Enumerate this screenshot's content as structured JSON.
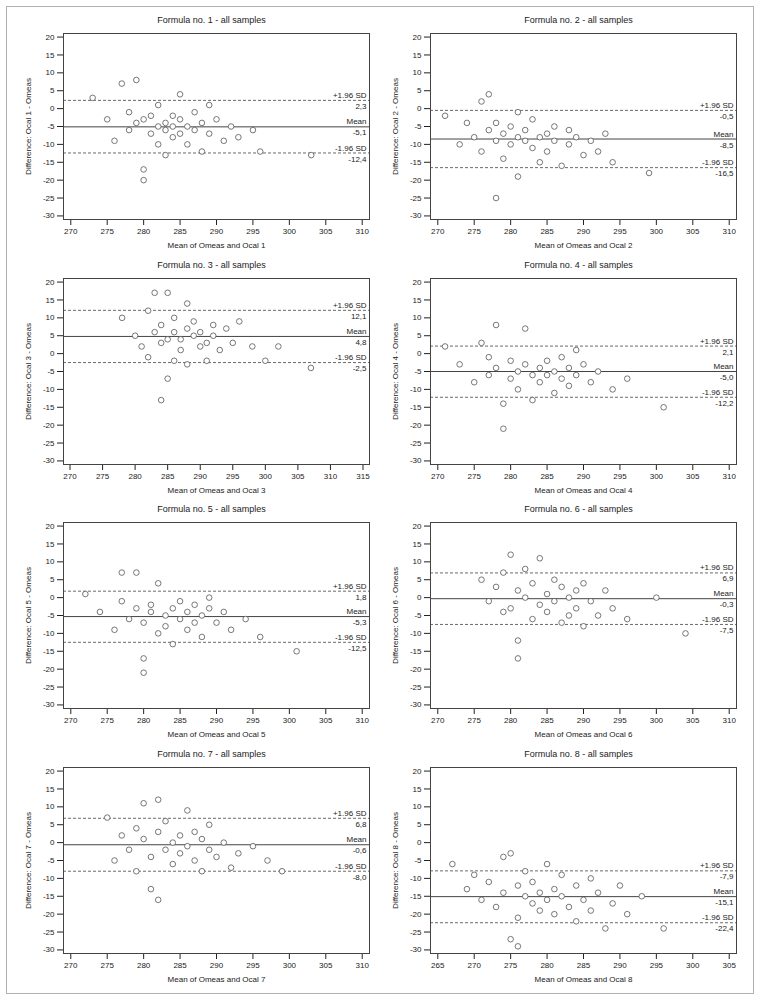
{
  "chart_data": [
    {
      "type": "scatter",
      "title": "Formula no. 1 - all samples",
      "x_label": "Mean of Omeas and Ocal 1",
      "y_label": "Difference: Ocal 1 - Omeas",
      "xlim": [
        269,
        311
      ],
      "xticks": [
        270,
        275,
        280,
        285,
        290,
        295,
        300,
        305,
        310
      ],
      "ylim": [
        -31,
        21
      ],
      "yticks": [
        -30,
        -25,
        -20,
        -15,
        -10,
        -5,
        0,
        5,
        10,
        15,
        20
      ],
      "marker": "circle",
      "color": "#555555",
      "x": [
        273,
        275,
        276,
        277,
        278,
        278,
        279,
        279,
        280,
        280,
        280,
        281,
        281,
        282,
        282,
        282,
        283,
        283,
        283,
        284,
        284,
        284,
        285,
        285,
        285,
        286,
        286,
        287,
        287,
        288,
        288,
        289,
        289,
        290,
        291,
        292,
        293,
        295,
        296,
        303
      ],
      "values": [
        3,
        -3,
        -9,
        7,
        -1,
        -6,
        8,
        -4,
        -17,
        -20,
        -3,
        -7,
        -2,
        -5,
        -10,
        1,
        -6,
        -4,
        -13,
        -5,
        -2,
        -8,
        -3,
        -7,
        4,
        -5,
        -10,
        -6,
        -1,
        -4,
        -12,
        -7,
        1,
        -3,
        -9,
        -5,
        -8,
        -6,
        -12,
        -13
      ],
      "lines": [
        {
          "name": "+1.96 SD",
          "value": 2.3,
          "label": "2,3",
          "line_style": "dashed"
        },
        {
          "name": "Mean",
          "value": -5.1,
          "label": "-5,1",
          "line_style": "solid"
        },
        {
          "name": "-1.96 SD",
          "value": -12.4,
          "label": "-12,4",
          "line_style": "dashed"
        }
      ]
    },
    {
      "type": "scatter",
      "title": "Formula no. 2 - all samples",
      "x_label": "Mean of Omeas and Ocal 2",
      "y_label": "Difference: Ocal 2 - Omeas",
      "xlim": [
        269,
        311
      ],
      "xticks": [
        270,
        275,
        280,
        285,
        290,
        295,
        300,
        305,
        310
      ],
      "ylim": [
        -31,
        21
      ],
      "yticks": [
        -30,
        -25,
        -20,
        -15,
        -10,
        -5,
        0,
        5,
        10,
        15,
        20
      ],
      "marker": "circle",
      "color": "#555555",
      "x": [
        271,
        273,
        274,
        275,
        276,
        276,
        277,
        277,
        278,
        278,
        278,
        279,
        279,
        280,
        280,
        281,
        281,
        281,
        282,
        282,
        283,
        283,
        284,
        284,
        285,
        285,
        286,
        286,
        287,
        288,
        288,
        289,
        290,
        291,
        292,
        293,
        294,
        299
      ],
      "values": [
        -2,
        -10,
        -4,
        -8,
        2,
        -12,
        -6,
        4,
        -25,
        -9,
        -4,
        -7,
        -14,
        -10,
        -5,
        -8,
        -1,
        -19,
        -9,
        -6,
        -11,
        -3,
        -8,
        -15,
        -7,
        -12,
        -5,
        -9,
        -16,
        -10,
        -6,
        -8,
        -13,
        -9,
        -12,
        -7,
        -15,
        -18
      ],
      "lines": [
        {
          "name": "+1.96 SD",
          "value": -0.5,
          "label": "-0,5",
          "line_style": "dashed"
        },
        {
          "name": "Mean",
          "value": -8.5,
          "label": "-8,5",
          "line_style": "solid"
        },
        {
          "name": "-1.96 SD",
          "value": -16.5,
          "label": "-16,5",
          "line_style": "dashed"
        }
      ]
    },
    {
      "type": "scatter",
      "title": "Formula no. 3 - all samples",
      "x_label": "Mean of Omeas and Ocal 3",
      "y_label": "Difference: Ocal 3 - Omeas",
      "xlim": [
        269,
        316
      ],
      "xticks": [
        270,
        275,
        280,
        285,
        290,
        295,
        300,
        305,
        310,
        315
      ],
      "ylim": [
        -31,
        21
      ],
      "yticks": [
        -30,
        -25,
        -20,
        -15,
        -10,
        -5,
        0,
        5,
        10,
        15,
        20
      ],
      "marker": "circle",
      "color": "#555555",
      "x": [
        278,
        280,
        281,
        282,
        282,
        283,
        283,
        284,
        284,
        284,
        285,
        285,
        285,
        286,
        286,
        286,
        287,
        287,
        288,
        288,
        288,
        289,
        289,
        290,
        290,
        291,
        291,
        292,
        292,
        293,
        294,
        295,
        296,
        298,
        300,
        302,
        307
      ],
      "values": [
        10,
        5,
        2,
        12,
        -1,
        6,
        17,
        -13,
        3,
        8,
        -7,
        4,
        17,
        6,
        -2,
        10,
        4,
        1,
        7,
        14,
        -3,
        5,
        9,
        2,
        6,
        3,
        -2,
        8,
        5,
        1,
        7,
        3,
        9,
        2,
        -2,
        2,
        -4
      ],
      "lines": [
        {
          "name": "+1.96 SD",
          "value": 12.1,
          "label": "12,1",
          "line_style": "dashed"
        },
        {
          "name": "Mean",
          "value": 4.8,
          "label": "4,8",
          "line_style": "solid"
        },
        {
          "name": "-1.96 SD",
          "value": -2.5,
          "label": "-2,5",
          "line_style": "dashed"
        }
      ]
    },
    {
      "type": "scatter",
      "title": "Formula no. 4 - all samples",
      "x_label": "Mean of Omeas and Ocal 4",
      "y_label": "Difference: Ocal 4 - Omeas",
      "xlim": [
        269,
        311
      ],
      "xticks": [
        270,
        275,
        280,
        285,
        290,
        295,
        300,
        305,
        310
      ],
      "ylim": [
        -31,
        21
      ],
      "yticks": [
        -30,
        -25,
        -20,
        -15,
        -10,
        -5,
        0,
        5,
        10,
        15,
        20
      ],
      "marker": "circle",
      "color": "#555555",
      "x": [
        271,
        273,
        275,
        276,
        277,
        277,
        278,
        278,
        279,
        279,
        280,
        280,
        281,
        281,
        282,
        282,
        283,
        283,
        284,
        284,
        285,
        285,
        286,
        286,
        287,
        287,
        288,
        288,
        289,
        289,
        290,
        291,
        292,
        294,
        296,
        301
      ],
      "values": [
        2,
        -3,
        -8,
        3,
        -1,
        -6,
        8,
        -4,
        -14,
        -21,
        -2,
        -7,
        -5,
        -10,
        7,
        -3,
        -6,
        -13,
        -4,
        -8,
        -2,
        -6,
        -5,
        -11,
        -1,
        -7,
        -4,
        -9,
        -6,
        1,
        -3,
        -8,
        -5,
        -10,
        -7,
        -15
      ],
      "lines": [
        {
          "name": "+1.96 SD",
          "value": 2.1,
          "label": "2,1",
          "line_style": "dashed"
        },
        {
          "name": "Mean",
          "value": -5.0,
          "label": "-5,0",
          "line_style": "solid"
        },
        {
          "name": "-1.96 SD",
          "value": -12.2,
          "label": "-12,2",
          "line_style": "dashed"
        }
      ]
    },
    {
      "type": "scatter",
      "title": "Formula no. 5 - all samples",
      "x_label": "Mean of Omeas and Ocal 5",
      "y_label": "Difference: Ocal 5 - Omeas",
      "xlim": [
        269,
        311
      ],
      "xticks": [
        270,
        275,
        280,
        285,
        290,
        295,
        300,
        305,
        310
      ],
      "ylim": [
        -31,
        21
      ],
      "yticks": [
        -30,
        -25,
        -20,
        -15,
        -10,
        -5,
        0,
        5,
        10,
        15,
        20
      ],
      "marker": "circle",
      "color": "#555555",
      "x": [
        272,
        274,
        276,
        277,
        277,
        278,
        279,
        279,
        280,
        280,
        280,
        281,
        281,
        282,
        282,
        283,
        283,
        284,
        284,
        285,
        285,
        286,
        286,
        287,
        287,
        288,
        288,
        289,
        289,
        290,
        291,
        292,
        294,
        296,
        301
      ],
      "values": [
        1,
        -4,
        -9,
        7,
        -1,
        -6,
        7,
        -3,
        -21,
        -17,
        -7,
        -4,
        -2,
        -10,
        4,
        -5,
        -8,
        -3,
        -13,
        -6,
        -1,
        -4,
        -9,
        -7,
        -2,
        -5,
        -11,
        -3,
        0,
        -7,
        -4,
        -9,
        -6,
        -11,
        -15
      ],
      "lines": [
        {
          "name": "+1.96 SD",
          "value": 1.8,
          "label": "1,8",
          "line_style": "dashed"
        },
        {
          "name": "Mean",
          "value": -5.3,
          "label": "-5,3",
          "line_style": "solid"
        },
        {
          "name": "-1.96 SD",
          "value": -12.5,
          "label": "-12,5",
          "line_style": "dashed"
        }
      ]
    },
    {
      "type": "scatter",
      "title": "Formula no. 6 - all samples",
      "x_label": "Mean of Omeas and Ocal 6",
      "y_label": "Difference: Ocal 6 - Omeas",
      "xlim": [
        269,
        311
      ],
      "xticks": [
        270,
        275,
        280,
        285,
        290,
        295,
        300,
        305,
        310
      ],
      "ylim": [
        -31,
        21
      ],
      "yticks": [
        -30,
        -25,
        -20,
        -15,
        -10,
        -5,
        0,
        5,
        10,
        15,
        20
      ],
      "marker": "circle",
      "color": "#555555",
      "x": [
        276,
        277,
        278,
        279,
        279,
        280,
        280,
        281,
        281,
        281,
        282,
        282,
        283,
        283,
        284,
        284,
        285,
        285,
        286,
        286,
        287,
        287,
        288,
        288,
        289,
        289,
        290,
        290,
        291,
        292,
        293,
        294,
        296,
        300,
        304
      ],
      "values": [
        5,
        -1,
        3,
        7,
        -4,
        12,
        -3,
        2,
        -17,
        -12,
        8,
        0,
        -6,
        4,
        -2,
        11,
        1,
        -4,
        5,
        -1,
        -7,
        3,
        0,
        -5,
        2,
        -3,
        4,
        -8,
        -1,
        -5,
        2,
        -3,
        -6,
        0,
        -10
      ],
      "lines": [
        {
          "name": "+1.96 SD",
          "value": 6.9,
          "label": "6,9",
          "line_style": "dashed"
        },
        {
          "name": "Mean",
          "value": -0.3,
          "label": "-0,3",
          "line_style": "solid"
        },
        {
          "name": "-1.96 SD",
          "value": -7.5,
          "label": "-7,5",
          "line_style": "dashed"
        }
      ]
    },
    {
      "type": "scatter",
      "title": "Formula no. 7 - all samples",
      "x_label": "Mean of Omeas and Ocal 7",
      "y_label": "Difference: Ocal 7 - Omeas",
      "xlim": [
        269,
        311
      ],
      "xticks": [
        270,
        275,
        280,
        285,
        290,
        295,
        300,
        305,
        310
      ],
      "ylim": [
        -31,
        21
      ],
      "yticks": [
        -30,
        -25,
        -20,
        -15,
        -10,
        -5,
        0,
        5,
        10,
        15,
        20
      ],
      "marker": "circle",
      "color": "#555555",
      "x": [
        275,
        276,
        277,
        278,
        279,
        279,
        280,
        280,
        281,
        281,
        282,
        282,
        282,
        283,
        283,
        284,
        284,
        285,
        285,
        286,
        286,
        287,
        287,
        288,
        288,
        289,
        289,
        290,
        291,
        292,
        293,
        295,
        297,
        299
      ],
      "values": [
        7,
        -5,
        2,
        -2,
        4,
        -8,
        11,
        1,
        -4,
        -13,
        12,
        -16,
        3,
        -2,
        6,
        0,
        -6,
        2,
        -3,
        9,
        -1,
        -5,
        3,
        -8,
        1,
        -2,
        5,
        -4,
        0,
        -7,
        -3,
        -1,
        -5,
        -8
      ],
      "lines": [
        {
          "name": "+1.96 SD",
          "value": 6.8,
          "label": "6,8",
          "line_style": "dashed"
        },
        {
          "name": "Mean",
          "value": -0.6,
          "label": "-0,6",
          "line_style": "solid"
        },
        {
          "name": "-1.96 SD",
          "value": -8.0,
          "label": "-8,0",
          "line_style": "dashed"
        }
      ]
    },
    {
      "type": "scatter",
      "title": "Formula no. 8 - all samples",
      "x_label": "Mean of Omeas and Ocal 8",
      "y_label": "Difference: Ocal 8 - Omeas",
      "xlim": [
        264,
        306
      ],
      "xticks": [
        265,
        270,
        275,
        280,
        285,
        290,
        295,
        300,
        305
      ],
      "ylim": [
        -31,
        21
      ],
      "yticks": [
        -30,
        -25,
        -20,
        -15,
        -10,
        -5,
        0,
        5,
        10,
        15,
        20
      ],
      "marker": "circle",
      "color": "#555555",
      "x": [
        267,
        269,
        270,
        271,
        272,
        273,
        274,
        274,
        275,
        275,
        276,
        276,
        276,
        277,
        277,
        278,
        278,
        279,
        279,
        280,
        280,
        281,
        281,
        282,
        282,
        283,
        284,
        284,
        285,
        286,
        286,
        287,
        288,
        289,
        290,
        291,
        293,
        296
      ],
      "values": [
        -6,
        -13,
        -9,
        -16,
        -11,
        -18,
        -4,
        -14,
        -3,
        -27,
        -29,
        -12,
        -21,
        -15,
        -8,
        -17,
        -11,
        -19,
        -14,
        -6,
        -16,
        -20,
        -13,
        -9,
        -15,
        -18,
        -12,
        -22,
        -16,
        -10,
        -19,
        -14,
        -24,
        -17,
        -12,
        -20,
        -15,
        -24
      ],
      "lines": [
        {
          "name": "+1.96 SD",
          "value": -7.9,
          "label": "-7,9",
          "line_style": "dashed"
        },
        {
          "name": "Mean",
          "value": -15.1,
          "label": "-15,1",
          "line_style": "solid"
        },
        {
          "name": "-1.96 SD",
          "value": -22.4,
          "label": "-22,4",
          "line_style": "dashed"
        }
      ]
    }
  ]
}
